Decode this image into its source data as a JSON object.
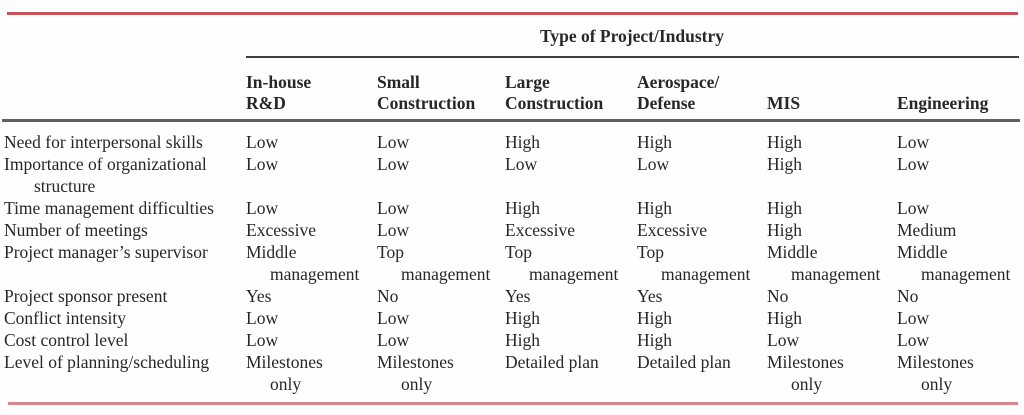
{
  "table": {
    "spanner_title": "Type of Project/Industry",
    "columns": [
      [
        "In-house",
        "R&D"
      ],
      [
        "Small",
        "Construction"
      ],
      [
        "Large",
        "Construction"
      ],
      [
        "Aerospace/",
        "Defense"
      ],
      [
        "MIS"
      ],
      [
        "Engineering"
      ]
    ],
    "rows": [
      {
        "label": [
          "Need for interpersonal skills"
        ],
        "values": [
          "Low",
          "Low",
          "High",
          "High",
          "High",
          "Low"
        ]
      },
      {
        "label": [
          "Importance of organizational",
          "structure"
        ],
        "values": [
          "Low",
          "Low",
          "Low",
          "Low",
          "High",
          "Low"
        ]
      },
      {
        "label": [
          "Time management difficulties"
        ],
        "values": [
          "Low",
          "Low",
          "High",
          "High",
          "High",
          "Low"
        ]
      },
      {
        "label": [
          "Number of meetings"
        ],
        "values": [
          "Excessive",
          "Low",
          "Excessive",
          "Excessive",
          "High",
          "Medium"
        ]
      },
      {
        "label": [
          "Project manager’s supervisor"
        ],
        "values": [
          [
            "Middle",
            "management"
          ],
          [
            "Top",
            "management"
          ],
          [
            "Top",
            "management"
          ],
          [
            "Top",
            "management"
          ],
          [
            "Middle",
            "management"
          ],
          [
            "Middle",
            "management"
          ]
        ]
      },
      {
        "label": [
          "Project sponsor present"
        ],
        "values": [
          "Yes",
          "No",
          "Yes",
          "Yes",
          "No",
          "No"
        ]
      },
      {
        "label": [
          "Conflict intensity"
        ],
        "values": [
          "Low",
          "Low",
          "High",
          "High",
          "High",
          "Low"
        ]
      },
      {
        "label": [
          "Cost control level"
        ],
        "values": [
          "Low",
          "Low",
          "High",
          "High",
          "Low",
          "Low"
        ]
      },
      {
        "label": [
          "Level of planning/scheduling"
        ],
        "values": [
          [
            "Milestones",
            "only"
          ],
          [
            "Milestones",
            "only"
          ],
          "Detailed plan",
          "Detailed plan",
          [
            "Milestones",
            "only"
          ],
          [
            "Milestones",
            "only"
          ]
        ]
      }
    ]
  },
  "colors": {
    "top_rule": "#c9535a",
    "bottom_rule": "#d8868c",
    "header_rule": "#3d3d3d",
    "divider_rule": "#606060",
    "text": "#29262a"
  }
}
